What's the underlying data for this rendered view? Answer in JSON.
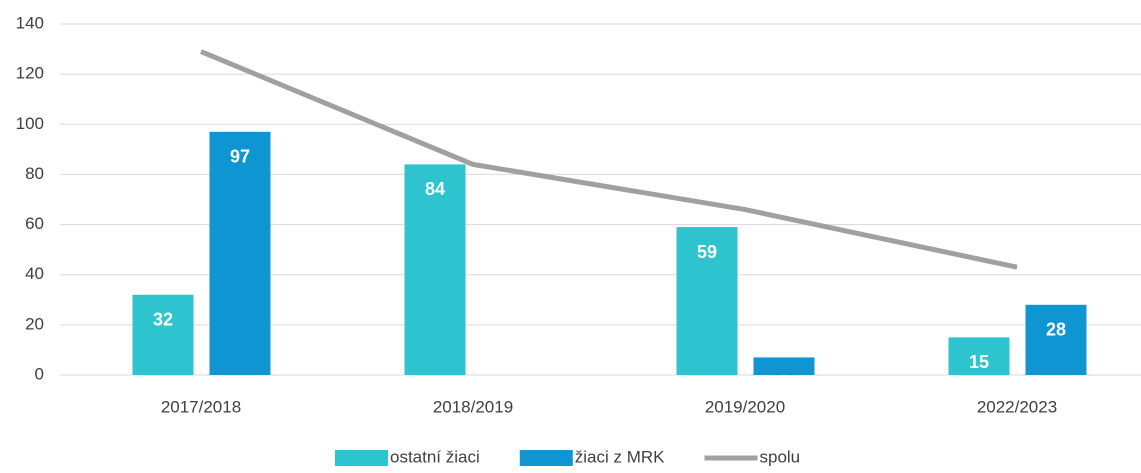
{
  "chart_data": {
    "type": "bar",
    "categories": [
      "2017/2018",
      "2018/2019",
      "2019/2020",
      "2022/2023"
    ],
    "series": [
      {
        "name": "ostatní žiaci",
        "color": "#2ec4cf",
        "type": "bar",
        "values": [
          32,
          84,
          59,
          15
        ]
      },
      {
        "name": "žiaci z MRK",
        "color": "#0f96d2",
        "type": "bar",
        "values": [
          97,
          null,
          7,
          28
        ]
      },
      {
        "name": "spolu",
        "color": "#a0a0a0",
        "type": "line",
        "values": [
          129,
          84,
          66,
          43
        ]
      }
    ],
    "ylim": [
      0,
      140
    ],
    "yticks": [
      0,
      20,
      40,
      60,
      80,
      100,
      120,
      140
    ],
    "grid": true,
    "legend": "bottom"
  }
}
